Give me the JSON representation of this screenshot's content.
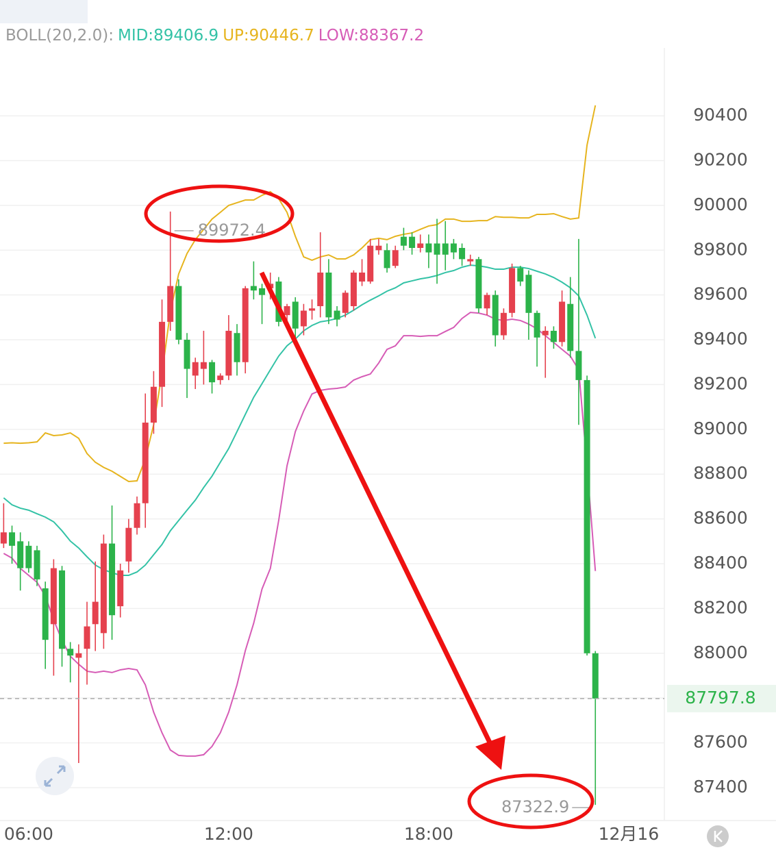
{
  "chart_data": {
    "type": "candlestick",
    "indicator": "BOLL(20,2.0):",
    "x": [
      5.25,
      5.5,
      5.75,
      6,
      6.25,
      6.5,
      6.75,
      7,
      7.25,
      7.5,
      7.75,
      8,
      8.25,
      8.5,
      8.75,
      9,
      9.25,
      9.5,
      9.75,
      10,
      10.25,
      10.5,
      10.75,
      11,
      11.25,
      11.5,
      11.75,
      12,
      12.25,
      12.5,
      12.75,
      13,
      13.25,
      13.5,
      13.75,
      14,
      14.25,
      14.5,
      14.75,
      15,
      15.25,
      15.5,
      15.75,
      16,
      16.25,
      16.5,
      16.75,
      17,
      17.25,
      17.5,
      17.75,
      18,
      18.25,
      18.5,
      18.75,
      19,
      19.25,
      19.5,
      19.75,
      20,
      20.25,
      20.5,
      20.75,
      21,
      21.25,
      21.5,
      21.75,
      22,
      22.25,
      22.5,
      22.75,
      23
    ],
    "open": [
      88490,
      88540,
      88500,
      88480,
      88460,
      88290,
      88130,
      88370,
      88020,
      87980,
      88020,
      88130,
      88090,
      88490,
      88210,
      88410,
      88560,
      88670,
      89030,
      89190,
      89480,
      89640,
      89400,
      89240,
      89270,
      89300,
      89220,
      89240,
      89430,
      89300,
      89640,
      89630,
      89630,
      89660,
      89510,
      89570,
      89460,
      89530,
      89550,
      89700,
      89530,
      89520,
      89550,
      89660,
      89660,
      89800,
      89800,
      89730,
      89860,
      89860,
      89810,
      89830,
      89830,
      89830,
      89830,
      89810,
      89750,
      89760,
      89540,
      89600,
      89420,
      89520,
      89720,
      89690,
      89520,
      89420,
      89440,
      89390,
      89560,
      89350,
      89220,
      88000
    ],
    "high": [
      88670,
      88570,
      88540,
      88500,
      88480,
      88320,
      88420,
      88390,
      88050,
      88040,
      88230,
      88410,
      88530,
      88660,
      88400,
      88600,
      88700,
      89160,
      89260,
      89580,
      89972.4,
      89670,
      89430,
      89320,
      89440,
      89310,
      89250,
      89510,
      89470,
      89640,
      89750,
      89650,
      89700,
      89680,
      89560,
      89590,
      89560,
      89580,
      89880,
      89760,
      89550,
      89620,
      89710,
      89760,
      89850,
      89850,
      89830,
      89820,
      89900,
      89880,
      89870,
      89870,
      89940,
      89930,
      89850,
      89830,
      89780,
      89770,
      89610,
      89620,
      89540,
      89740,
      89730,
      89710,
      89530,
      89460,
      89460,
      89620,
      89680,
      89850,
      89240,
      88010
    ],
    "low": [
      88470,
      88400,
      88280,
      88360,
      88300,
      87930,
      87900,
      87940,
      87870,
      87510,
      87860,
      88010,
      88020,
      88060,
      88160,
      88360,
      88530,
      88560,
      88980,
      89100,
      89440,
      89380,
      89140,
      89180,
      89200,
      89160,
      89200,
      89220,
      89240,
      89250,
      89580,
      89470,
      89580,
      89460,
      89470,
      89400,
      89420,
      89490,
      89500,
      89470,
      89460,
      89500,
      89530,
      89640,
      89650,
      89780,
      89700,
      89720,
      89800,
      89780,
      89790,
      89720,
      89650,
      89710,
      89760,
      89730,
      89730,
      89520,
      89510,
      89370,
      89400,
      89500,
      89640,
      89400,
      89280,
      89230,
      89360,
      89370,
      89320,
      89020,
      87990,
      87322.9
    ],
    "close": [
      88540,
      88480,
      88380,
      88380,
      88330,
      88060,
      88380,
      88020,
      87990,
      88000,
      88120,
      88230,
      88490,
      88170,
      88370,
      88560,
      88670,
      89030,
      89190,
      89480,
      89640,
      89400,
      89270,
      89300,
      89300,
      89210,
      89240,
      89440,
      89300,
      89630,
      89620,
      89600,
      89650,
      89480,
      89550,
      89450,
      89530,
      89540,
      89700,
      89500,
      89490,
      89610,
      89700,
      89700,
      89820,
      89820,
      89720,
      89800,
      89820,
      89810,
      89830,
      89790,
      89780,
      89780,
      89790,
      89760,
      89760,
      89540,
      89600,
      89420,
      89520,
      89720,
      89660,
      89520,
      89410,
      89440,
      89390,
      89570,
      89350,
      89220,
      88000,
      87797.8
    ],
    "up_color": "#e5414e",
    "down_color": "#2cb34a",
    "bands": [
      {
        "name": "MID:",
        "color": "#33c2a6",
        "values": [
          88694,
          88663,
          88648,
          88639,
          88623,
          88608,
          88587,
          88547,
          88501,
          88470,
          88431,
          88394,
          88373,
          88360,
          88348,
          88348,
          88363,
          88394,
          88440,
          88486,
          88547,
          88593,
          88639,
          88684,
          88740,
          88791,
          88853,
          88914,
          88990,
          89067,
          89143,
          89204,
          89266,
          89327,
          89373,
          89403,
          89440,
          89464,
          89480,
          89486,
          89495,
          89510,
          89532,
          89556,
          89577,
          89596,
          89617,
          89632,
          89654,
          89663,
          89672,
          89678,
          89687,
          89700,
          89709,
          89724,
          89733,
          89730,
          89724,
          89715,
          89715,
          89724,
          89724,
          89718,
          89706,
          89694,
          89678,
          89657,
          89632,
          89596,
          89510,
          89406.9
        ]
      },
      {
        "name": "UP:",
        "color": "#e6b41e",
        "values": [
          88938,
          88940,
          88938,
          88940,
          88944,
          88984,
          88972,
          88975,
          88984,
          88960,
          88892,
          88853,
          88830,
          88813,
          88790,
          88767,
          88770,
          88868,
          89021,
          89250,
          89525,
          89694,
          89785,
          89847,
          89893,
          89939,
          89969,
          90000,
          90012,
          90024,
          90024,
          90045,
          90061,
          90030,
          89969,
          89862,
          89770,
          89755,
          89770,
          89779,
          89761,
          89761,
          89779,
          89810,
          89847,
          89853,
          89847,
          89862,
          89871,
          89877,
          89893,
          89908,
          89914,
          89939,
          89939,
          89929,
          89929,
          89932,
          89932,
          89950,
          89947,
          89947,
          89944,
          89944,
          89960,
          89960,
          89963,
          89950,
          89939,
          89944,
          90269,
          90446.7
        ]
      },
      {
        "name": "LOW:",
        "color": "#d65cb6",
        "values": [
          88446,
          88425,
          88379,
          88348,
          88317,
          88256,
          88149,
          88058,
          87987,
          87951,
          87920,
          87914,
          87920,
          87914,
          87926,
          87932,
          87926,
          87859,
          87737,
          87645,
          87568,
          87544,
          87541,
          87541,
          87547,
          87584,
          87645,
          87737,
          87859,
          88012,
          88134,
          88287,
          88379,
          88593,
          88837,
          88990,
          89082,
          89158,
          89174,
          89180,
          89183,
          89189,
          89220,
          89235,
          89247,
          89296,
          89357,
          89373,
          89418,
          89418,
          89415,
          89418,
          89418,
          89437,
          89455,
          89495,
          89522,
          89519,
          89510,
          89492,
          89486,
          89492,
          89486,
          89470,
          89449,
          89418,
          89388,
          89357,
          89327,
          89266,
          88837,
          88367.2
        ]
      }
    ],
    "ylim": [
      87250,
      90700
    ],
    "yticks": [
      87400,
      87600,
      87800,
      88000,
      88200,
      88400,
      88600,
      88800,
      89000,
      89200,
      89400,
      89600,
      89800,
      90000,
      90200,
      90400
    ],
    "xlim": [
      5.14,
      25.07
    ],
    "xticks": [
      {
        "value": 6,
        "label": "06:00"
      },
      {
        "value": 12,
        "label": "12:00"
      },
      {
        "value": 18,
        "label": "18:00"
      },
      {
        "value": 24,
        "label": "12月16"
      }
    ],
    "grid": true
  }
}
